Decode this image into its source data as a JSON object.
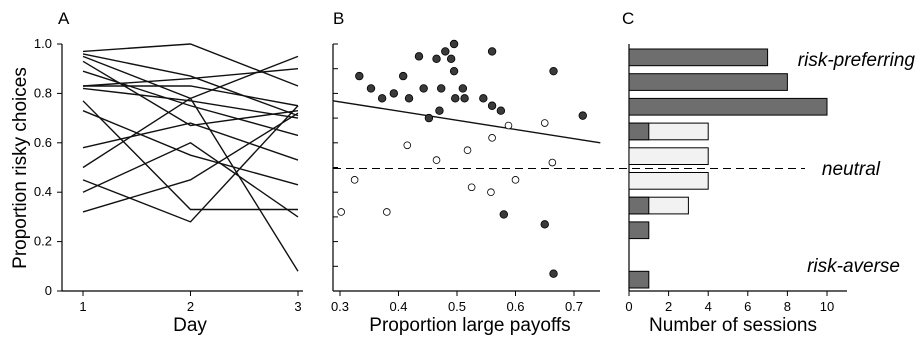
{
  "chart_data": [
    {
      "panel": "A",
      "type": "line",
      "xlabel": "Day",
      "ylabel": "Proportion risky choices",
      "x": [
        1,
        2,
        3
      ],
      "xticks": [
        "1",
        "2",
        "3"
      ],
      "yticks": [
        "0",
        "0.2",
        "0.4",
        "0.6",
        "0.8",
        "1.0"
      ],
      "ylim": [
        0,
        1
      ],
      "series": [
        {
          "values": [
            0.97,
            1.0,
            0.83
          ]
        },
        {
          "values": [
            0.96,
            0.87,
            0.71
          ]
        },
        {
          "values": [
            0.95,
            0.78,
            0.95
          ]
        },
        {
          "values": [
            0.93,
            0.67,
            0.73
          ]
        },
        {
          "values": [
            0.89,
            0.75,
            0.63
          ]
        },
        {
          "values": [
            0.83,
            0.83,
            0.75
          ]
        },
        {
          "values": [
            0.83,
            0.86,
            0.9
          ]
        },
        {
          "values": [
            0.82,
            0.77,
            0.7
          ]
        },
        {
          "values": [
            0.77,
            0.33,
            0.33
          ]
        },
        {
          "values": [
            0.73,
            0.55,
            0.43
          ]
        },
        {
          "values": [
            0.58,
            0.68,
            0.53
          ]
        },
        {
          "values": [
            0.5,
            0.78,
            0.08
          ]
        },
        {
          "values": [
            0.45,
            0.28,
            0.75
          ]
        },
        {
          "values": [
            0.4,
            0.6,
            0.3
          ]
        },
        {
          "values": [
            0.32,
            0.45,
            0.72
          ]
        }
      ]
    },
    {
      "panel": "B",
      "type": "scatter",
      "xlabel": "Proportion large payoffs",
      "xticks": [
        "0.3",
        "0.4",
        "0.5",
        "0.6",
        "0.7"
      ],
      "xlim": [
        0.3,
        0.75
      ],
      "ylim": [
        0,
        1
      ],
      "neutral_line": 0.5,
      "fit_line": {
        "x": [
          0.3,
          0.75
        ],
        "y": [
          0.77,
          0.6
        ]
      },
      "filled_points": [
        [
          0.333,
          0.87
        ],
        [
          0.353,
          0.82
        ],
        [
          0.372,
          0.78
        ],
        [
          0.392,
          0.8
        ],
        [
          0.408,
          0.87
        ],
        [
          0.418,
          0.78
        ],
        [
          0.435,
          0.95
        ],
        [
          0.443,
          0.82
        ],
        [
          0.452,
          0.7
        ],
        [
          0.465,
          0.94
        ],
        [
          0.47,
          0.73
        ],
        [
          0.473,
          0.82
        ],
        [
          0.48,
          0.97
        ],
        [
          0.49,
          0.94
        ],
        [
          0.495,
          1.0
        ],
        [
          0.495,
          0.89
        ],
        [
          0.497,
          0.78
        ],
        [
          0.51,
          0.82
        ],
        [
          0.513,
          0.78
        ],
        [
          0.545,
          0.78
        ],
        [
          0.56,
          0.75
        ],
        [
          0.56,
          0.97
        ],
        [
          0.575,
          0.73
        ],
        [
          0.58,
          0.31
        ],
        [
          0.65,
          0.27
        ],
        [
          0.665,
          0.89
        ],
        [
          0.665,
          0.07
        ],
        [
          0.715,
          0.71
        ]
      ],
      "open_points": [
        [
          0.302,
          0.32
        ],
        [
          0.325,
          0.45
        ],
        [
          0.38,
          0.32
        ],
        [
          0.415,
          0.59
        ],
        [
          0.465,
          0.53
        ],
        [
          0.518,
          0.57
        ],
        [
          0.525,
          0.42
        ],
        [
          0.558,
          0.4
        ],
        [
          0.56,
          0.62
        ],
        [
          0.588,
          0.67
        ],
        [
          0.6,
          0.45
        ],
        [
          0.65,
          0.68
        ],
        [
          0.663,
          0.52
        ]
      ]
    },
    {
      "panel": "C",
      "type": "bar",
      "orientation": "horizontal",
      "xlabel": "Number of sessions",
      "xticks": [
        "0",
        "2",
        "4",
        "6",
        "8",
        "10"
      ],
      "xlim": [
        0,
        11
      ],
      "neutral_bin": 5,
      "bins": [
        {
          "filled": 7,
          "open": 0
        },
        {
          "filled": 8,
          "open": 0
        },
        {
          "filled": 10,
          "open": 0
        },
        {
          "filled": 1,
          "open": 4
        },
        {
          "filled": 0,
          "open": 4
        },
        {
          "filled": 0,
          "open": 4
        },
        {
          "filled": 1,
          "open": 3
        },
        {
          "filled": 1,
          "open": 0
        },
        {
          "filled": 0,
          "open": 0
        },
        {
          "filled": 1,
          "open": 0
        }
      ],
      "annotations": {
        "top": "risk-preferring",
        "middle": "neutral",
        "bottom": "risk-averse"
      }
    }
  ],
  "colors": {
    "filled": "#6e6e6e",
    "open": "#f2f2f2",
    "dot_filled": "#3a3a3a",
    "line": "#111111"
  }
}
